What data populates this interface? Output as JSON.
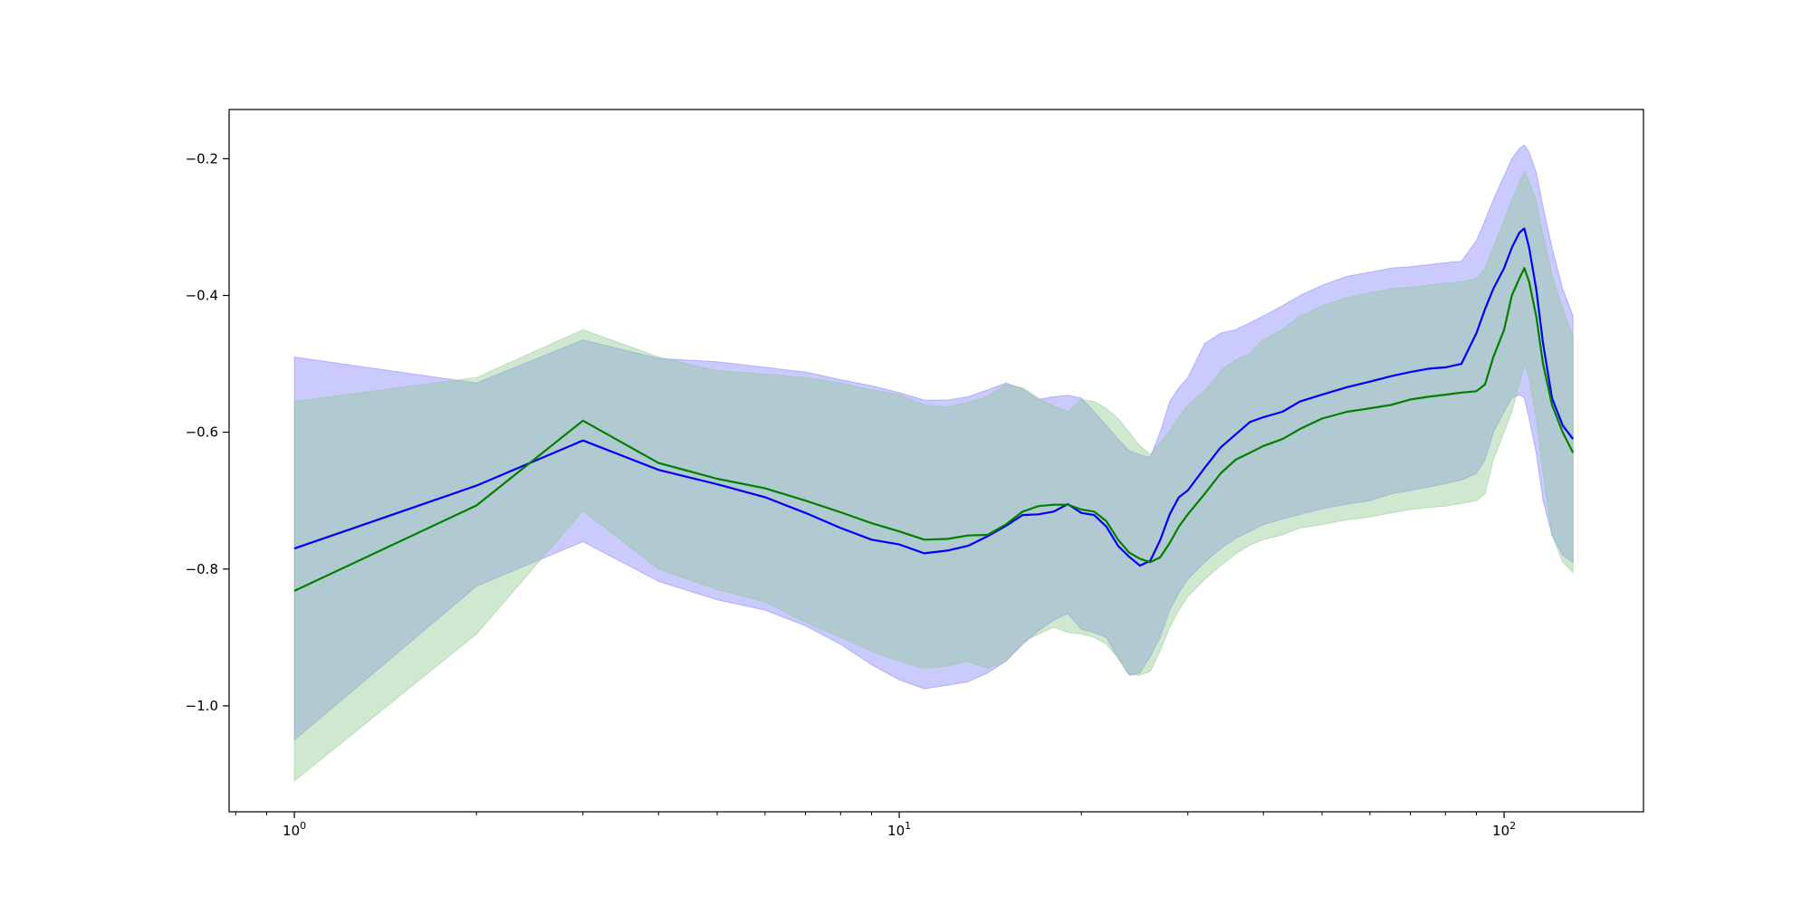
{
  "chart_data": {
    "type": "line",
    "title": "",
    "xlabel": "",
    "ylabel": "",
    "xscale": "log",
    "xlim": [
      0.78,
      170
    ],
    "ylim": [
      -1.155,
      -0.128
    ],
    "grid": false,
    "legend": "none",
    "x_ticks": [
      {
        "value": 1,
        "base": "10",
        "exp": "0"
      },
      {
        "value": 10,
        "base": "10",
        "exp": "1"
      },
      {
        "value": 100,
        "base": "10",
        "exp": "2"
      }
    ],
    "y_ticks": [
      {
        "value": -0.2,
        "label": "−0.2"
      },
      {
        "value": -0.4,
        "label": "−0.4"
      },
      {
        "value": -0.6,
        "label": "−0.6"
      },
      {
        "value": -0.8,
        "label": "−0.8"
      },
      {
        "value": -1.0,
        "label": "−1.0"
      }
    ],
    "series": [
      {
        "color": "#0000ff",
        "band_color": "#8080ff",
        "x": [
          1,
          2,
          3,
          4,
          5,
          6,
          7,
          8,
          9,
          10,
          11,
          12,
          13,
          14,
          15,
          16,
          17,
          18,
          19,
          20,
          21,
          22,
          23,
          24,
          25,
          26,
          27,
          28,
          29,
          30,
          32,
          34,
          36,
          38,
          40,
          43,
          46,
          50,
          55,
          60,
          65,
          70,
          75,
          80,
          85,
          90,
          93,
          96,
          100,
          103,
          106,
          108,
          110,
          113,
          116,
          120,
          125,
          130
        ],
        "y": [
          -0.77,
          -0.678,
          -0.612,
          -0.655,
          -0.676,
          -0.695,
          -0.718,
          -0.74,
          -0.757,
          -0.764,
          -0.777,
          -0.773,
          -0.766,
          -0.752,
          -0.737,
          -0.721,
          -0.72,
          -0.716,
          -0.705,
          -0.718,
          -0.721,
          -0.738,
          -0.766,
          -0.782,
          -0.795,
          -0.788,
          -0.758,
          -0.72,
          -0.695,
          -0.685,
          -0.652,
          -0.622,
          -0.603,
          -0.585,
          -0.578,
          -0.57,
          -0.555,
          -0.545,
          -0.534,
          -0.526,
          -0.518,
          -0.512,
          -0.507,
          -0.505,
          -0.5,
          -0.455,
          -0.42,
          -0.39,
          -0.36,
          -0.33,
          -0.308,
          -0.302,
          -0.33,
          -0.39,
          -0.47,
          -0.55,
          -0.59,
          -0.61
        ],
        "upper": [
          -0.49,
          -0.528,
          -0.465,
          -0.492,
          -0.497,
          -0.505,
          -0.512,
          -0.523,
          -0.532,
          -0.542,
          -0.553,
          -0.553,
          -0.548,
          -0.538,
          -0.528,
          -0.537,
          -0.552,
          -0.548,
          -0.546,
          -0.55,
          -0.57,
          -0.59,
          -0.61,
          -0.627,
          -0.633,
          -0.637,
          -0.6,
          -0.555,
          -0.535,
          -0.52,
          -0.47,
          -0.455,
          -0.45,
          -0.44,
          -0.43,
          -0.415,
          -0.4,
          -0.385,
          -0.372,
          -0.366,
          -0.36,
          -0.358,
          -0.355,
          -0.352,
          -0.35,
          -0.32,
          -0.29,
          -0.26,
          -0.225,
          -0.2,
          -0.185,
          -0.18,
          -0.19,
          -0.22,
          -0.27,
          -0.33,
          -0.39,
          -0.43
        ],
        "lower": [
          -1.05,
          -0.825,
          -0.76,
          -0.818,
          -0.845,
          -0.86,
          -0.883,
          -0.91,
          -0.94,
          -0.962,
          -0.975,
          -0.97,
          -0.965,
          -0.952,
          -0.935,
          -0.91,
          -0.89,
          -0.875,
          -0.865,
          -0.888,
          -0.893,
          -0.9,
          -0.93,
          -0.955,
          -0.952,
          -0.928,
          -0.9,
          -0.86,
          -0.835,
          -0.815,
          -0.79,
          -0.77,
          -0.755,
          -0.745,
          -0.735,
          -0.727,
          -0.72,
          -0.712,
          -0.705,
          -0.7,
          -0.69,
          -0.685,
          -0.68,
          -0.675,
          -0.67,
          -0.66,
          -0.64,
          -0.6,
          -0.57,
          -0.55,
          -0.545,
          -0.55,
          -0.58,
          -0.63,
          -0.7,
          -0.75,
          -0.78,
          -0.79
        ]
      },
      {
        "color": "#008000",
        "band_color": "#8fc98f",
        "x": [
          1,
          2,
          3,
          4,
          5,
          6,
          7,
          8,
          9,
          10,
          11,
          12,
          13,
          14,
          15,
          16,
          17,
          18,
          19,
          20,
          21,
          22,
          23,
          24,
          25,
          26,
          27,
          28,
          29,
          30,
          32,
          34,
          36,
          38,
          40,
          43,
          46,
          50,
          55,
          60,
          65,
          70,
          75,
          80,
          85,
          90,
          93,
          96,
          100,
          103,
          106,
          108,
          110,
          113,
          116,
          120,
          125,
          130
        ],
        "y": [
          -0.832,
          -0.707,
          -0.583,
          -0.645,
          -0.668,
          -0.682,
          -0.7,
          -0.717,
          -0.733,
          -0.745,
          -0.757,
          -0.756,
          -0.751,
          -0.75,
          -0.735,
          -0.716,
          -0.708,
          -0.706,
          -0.706,
          -0.713,
          -0.716,
          -0.73,
          -0.757,
          -0.776,
          -0.785,
          -0.79,
          -0.783,
          -0.762,
          -0.738,
          -0.72,
          -0.69,
          -0.66,
          -0.64,
          -0.63,
          -0.62,
          -0.61,
          -0.595,
          -0.58,
          -0.57,
          -0.565,
          -0.56,
          -0.552,
          -0.548,
          -0.545,
          -0.542,
          -0.54,
          -0.53,
          -0.49,
          -0.45,
          -0.4,
          -0.375,
          -0.36,
          -0.38,
          -0.43,
          -0.5,
          -0.56,
          -0.6,
          -0.63
        ],
        "upper": [
          -0.555,
          -0.52,
          -0.45,
          -0.49,
          -0.51,
          -0.515,
          -0.52,
          -0.528,
          -0.538,
          -0.545,
          -0.56,
          -0.563,
          -0.556,
          -0.548,
          -0.53,
          -0.535,
          -0.55,
          -0.562,
          -0.57,
          -0.552,
          -0.555,
          -0.565,
          -0.58,
          -0.6,
          -0.62,
          -0.632,
          -0.615,
          -0.598,
          -0.578,
          -0.56,
          -0.54,
          -0.51,
          -0.494,
          -0.485,
          -0.465,
          -0.45,
          -0.43,
          -0.415,
          -0.403,
          -0.396,
          -0.39,
          -0.388,
          -0.385,
          -0.382,
          -0.38,
          -0.375,
          -0.36,
          -0.33,
          -0.29,
          -0.26,
          -0.235,
          -0.22,
          -0.232,
          -0.262,
          -0.31,
          -0.37,
          -0.42,
          -0.46
        ],
        "lower": [
          -1.11,
          -0.895,
          -0.715,
          -0.8,
          -0.83,
          -0.848,
          -0.878,
          -0.9,
          -0.92,
          -0.935,
          -0.945,
          -0.942,
          -0.935,
          -0.945,
          -0.935,
          -0.907,
          -0.895,
          -0.885,
          -0.893,
          -0.895,
          -0.9,
          -0.91,
          -0.93,
          -0.955,
          -0.955,
          -0.95,
          -0.92,
          -0.885,
          -0.86,
          -0.84,
          -0.815,
          -0.795,
          -0.778,
          -0.765,
          -0.757,
          -0.75,
          -0.74,
          -0.735,
          -0.728,
          -0.724,
          -0.718,
          -0.713,
          -0.71,
          -0.708,
          -0.704,
          -0.7,
          -0.69,
          -0.64,
          -0.6,
          -0.57,
          -0.53,
          -0.5,
          -0.52,
          -0.58,
          -0.66,
          -0.75,
          -0.79,
          -0.805
        ]
      }
    ]
  }
}
